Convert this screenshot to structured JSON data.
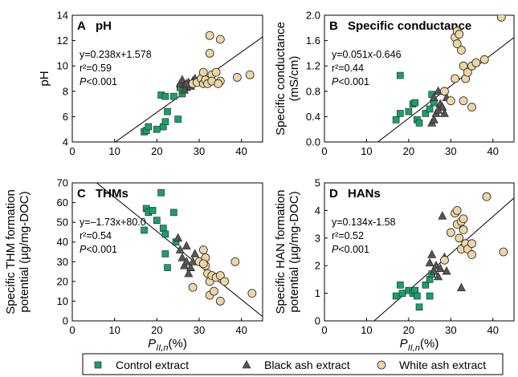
{
  "colors": {
    "control": "#1aa06a",
    "black": "#555555",
    "white": "#ecd6a5",
    "marker_stroke": "#222222",
    "line": "#000000"
  },
  "xlabel": "P",
  "xlabel_sub": "II,n",
  "xlabel_suffix": "(%)",
  "legend": {
    "placement": "bottom",
    "items": [
      {
        "label": "Control extract",
        "marker": "square",
        "color": "#1aa06a"
      },
      {
        "label": "Black ash extract",
        "marker": "triangle",
        "color": "#555555"
      },
      {
        "label": "White ash extract",
        "marker": "circle",
        "color": "#ecd6a5"
      }
    ]
  },
  "chart_data": [
    {
      "type": "scatter",
      "panel": "A",
      "title": "pH",
      "ylabel_lines": [
        "pH"
      ],
      "xlim": [
        0,
        45
      ],
      "ylim": [
        4,
        14
      ],
      "xticks": [
        0,
        10,
        20,
        30,
        40
      ],
      "yticks": [
        4,
        6,
        8,
        10,
        12,
        14
      ],
      "xtick_labels_shown": false,
      "equation_lines": [
        "y=0.238x+1.578",
        "r²=0.59",
        "P<0.001"
      ],
      "fit": {
        "slope": 0.238,
        "intercept": 1.578
      },
      "series": [
        {
          "name": "Control extract",
          "points": [
            [
              17,
              4.8
            ],
            [
              17.5,
              4.9
            ],
            [
              18,
              5.2
            ],
            [
              20,
              5.0
            ],
            [
              21,
              7.7
            ],
            [
              21.5,
              5.2
            ],
            [
              22,
              7.6
            ],
            [
              22,
              5.6
            ],
            [
              22.5,
              6.4
            ],
            [
              24,
              7.6
            ],
            [
              25,
              5.8
            ],
            [
              26,
              7.8
            ],
            [
              25.5,
              8.3
            ]
          ]
        },
        {
          "name": "Black ash extract",
          "points": [
            [
              25.5,
              8.6
            ],
            [
              26,
              8.9
            ],
            [
              26.5,
              8.5
            ],
            [
              27,
              8.3
            ],
            [
              27.5,
              8.7
            ],
            [
              28,
              8.4
            ],
            [
              28.5,
              8.8
            ],
            [
              29,
              9.0
            ],
            [
              27,
              8.6
            ],
            [
              26.5,
              8.1
            ]
          ]
        },
        {
          "name": "White ash extract",
          "points": [
            [
              28.5,
              8.6
            ],
            [
              29.5,
              8.7
            ],
            [
              30.5,
              9.0
            ],
            [
              31,
              8.6
            ],
            [
              31,
              9.5
            ],
            [
              31.5,
              8.9
            ],
            [
              32,
              8.6
            ],
            [
              32.5,
              12.4
            ],
            [
              32.5,
              11.0
            ],
            [
              33,
              9.3
            ],
            [
              33,
              8.8
            ],
            [
              34,
              9.5
            ],
            [
              35,
              12.1
            ],
            [
              35,
              8.8
            ],
            [
              39,
              9.1
            ],
            [
              42,
              9.3
            ],
            [
              34.5,
              8.6
            ]
          ]
        }
      ]
    },
    {
      "type": "scatter",
      "panel": "B",
      "title": "Specific conductance",
      "ylabel_lines": [
        "Specific conductance",
        "(mS/cm)"
      ],
      "xlim": [
        0,
        45
      ],
      "ylim": [
        0,
        2.0
      ],
      "xticks": [
        0,
        10,
        20,
        30,
        40
      ],
      "yticks": [
        0.0,
        0.4,
        0.8,
        1.2,
        1.6,
        2.0
      ],
      "ytick_labels": [
        "0.0",
        "0.4",
        "0.8",
        "1.2",
        "1.6",
        "2.0"
      ],
      "xtick_labels_shown": false,
      "equation_lines": [
        "y=0.051x-0.646",
        "r²=0.44",
        "P<0.001"
      ],
      "fit": {
        "slope": 0.051,
        "intercept": -0.646
      },
      "series": [
        {
          "name": "Control extract",
          "points": [
            [
              17,
              0.35
            ],
            [
              18,
              1.05
            ],
            [
              18,
              0.45
            ],
            [
              20,
              0.48
            ],
            [
              21,
              0.6
            ],
            [
              21.5,
              0.62
            ],
            [
              22,
              0.35
            ],
            [
              22.5,
              0.3
            ],
            [
              24,
              0.45
            ],
            [
              25,
              0.52
            ],
            [
              25.5,
              0.75
            ],
            [
              26,
              0.62
            ]
          ]
        },
        {
          "name": "Black ash extract",
          "points": [
            [
              25.5,
              0.3
            ],
            [
              26,
              0.35
            ],
            [
              26.5,
              0.45
            ],
            [
              27,
              0.8
            ],
            [
              27.5,
              0.6
            ],
            [
              28,
              0.55
            ],
            [
              28.5,
              0.45
            ],
            [
              26,
              0.7
            ],
            [
              27,
              0.5
            ],
            [
              29,
              0.7
            ]
          ]
        },
        {
          "name": "White ash extract",
          "points": [
            [
              28.5,
              0.8
            ],
            [
              30,
              0.65
            ],
            [
              31,
              1.0
            ],
            [
              31,
              1.65
            ],
            [
              31.5,
              1.75
            ],
            [
              32,
              1.7
            ],
            [
              32.5,
              1.45
            ],
            [
              33,
              1.2
            ],
            [
              33,
              0.65
            ],
            [
              33.5,
              1.0
            ],
            [
              34,
              1.1
            ],
            [
              35,
              1.2
            ],
            [
              35,
              0.55
            ],
            [
              36,
              1.25
            ],
            [
              38,
              1.3
            ],
            [
              42,
              1.97
            ],
            [
              31.5,
              1.55
            ]
          ]
        }
      ]
    },
    {
      "type": "scatter",
      "panel": "C",
      "title": "THMs",
      "ylabel_lines": [
        "Specific THM formation",
        "potential  (µg/mg-DOC)"
      ],
      "xlim": [
        0,
        45
      ],
      "ylim": [
        0,
        70
      ],
      "xticks": [
        0,
        10,
        20,
        30,
        40
      ],
      "yticks": [
        0,
        10,
        20,
        30,
        40,
        50,
        60,
        70
      ],
      "xtick_labels_shown": true,
      "equation_lines": [
        "y=–1.73x+80.0",
        "r²=0.54",
        "P<0.001"
      ],
      "fit": {
        "slope": -1.73,
        "intercept": 80.0
      },
      "series": [
        {
          "name": "Control extract",
          "points": [
            [
              17,
              46
            ],
            [
              17.5,
              57
            ],
            [
              18,
              55
            ],
            [
              19,
              56
            ],
            [
              20,
              51
            ],
            [
              21,
              65
            ],
            [
              21.5,
              47
            ],
            [
              22,
              44
            ],
            [
              22,
              34
            ],
            [
              22.5,
              27
            ],
            [
              24,
              55
            ],
            [
              24.5,
              40
            ]
          ]
        },
        {
          "name": "Black ash extract",
          "points": [
            [
              25,
              42
            ],
            [
              25.5,
              36
            ],
            [
              26,
              32
            ],
            [
              26.5,
              28
            ],
            [
              27,
              30
            ],
            [
              27.5,
              24
            ],
            [
              28,
              27
            ],
            [
              28.5,
              30
            ],
            [
              29,
              34
            ],
            [
              27,
              38
            ]
          ]
        },
        {
          "name": "White ash extract",
          "points": [
            [
              28.5,
              17
            ],
            [
              30,
              30
            ],
            [
              31,
              36
            ],
            [
              31.5,
              32
            ],
            [
              31.5,
              28
            ],
            [
              32,
              24
            ],
            [
              32.5,
              20
            ],
            [
              32.5,
              13
            ],
            [
              33,
              23
            ],
            [
              33.5,
              15
            ],
            [
              34,
              22
            ],
            [
              35,
              10
            ],
            [
              35,
              23
            ],
            [
              36,
              20
            ],
            [
              38.5,
              30
            ],
            [
              42.5,
              14
            ],
            [
              31,
              29
            ]
          ]
        }
      ]
    },
    {
      "type": "scatter",
      "panel": "D",
      "title": "HANs",
      "ylabel_lines": [
        "Specific HAN formation",
        "potential  (µg/mg-DOC)"
      ],
      "xlim": [
        0,
        45
      ],
      "ylim": [
        0,
        5
      ],
      "xticks": [
        0,
        10,
        20,
        30,
        40
      ],
      "yticks": [
        0,
        1,
        2,
        3,
        4,
        5
      ],
      "xtick_labels_shown": true,
      "equation_lines": [
        "y=0.134x-1.58",
        "r²=0.52",
        "P<0.001"
      ],
      "fit": {
        "slope": 0.134,
        "intercept": -1.58
      },
      "series": [
        {
          "name": "Control extract",
          "points": [
            [
              17,
              0.9
            ],
            [
              18,
              1.3
            ],
            [
              18.5,
              1.0
            ],
            [
              20,
              1.1
            ],
            [
              21,
              1.0
            ],
            [
              21.5,
              1.1
            ],
            [
              22,
              0.9
            ],
            [
              22.5,
              0.5
            ],
            [
              24,
              1.3
            ],
            [
              25,
              0.9
            ],
            [
              25,
              1.5
            ],
            [
              25.5,
              1.7
            ]
          ]
        },
        {
          "name": "Black ash extract",
          "points": [
            [
              25,
              2.1
            ],
            [
              25.5,
              2.4
            ],
            [
              26,
              1.8
            ],
            [
              26.5,
              2.0
            ],
            [
              27,
              1.6
            ],
            [
              27.5,
              1.9
            ],
            [
              28,
              3.8
            ],
            [
              28.5,
              2.3
            ],
            [
              29,
              1.8
            ],
            [
              32.5,
              1.2
            ]
          ]
        },
        {
          "name": "White ash extract",
          "points": [
            [
              28.5,
              2.2
            ],
            [
              30,
              3.2
            ],
            [
              31,
              3.9
            ],
            [
              31.5,
              4.0
            ],
            [
              31.5,
              3.5
            ],
            [
              32,
              3.0
            ],
            [
              32.5,
              3.6
            ],
            [
              32.5,
              2.6
            ],
            [
              33,
              3.3
            ],
            [
              33.5,
              2.8
            ],
            [
              34,
              2.6
            ],
            [
              35,
              2.4
            ],
            [
              35,
              2.8
            ],
            [
              38.5,
              4.5
            ],
            [
              42.5,
              2.5
            ],
            [
              33,
              3.7
            ]
          ]
        }
      ]
    }
  ]
}
